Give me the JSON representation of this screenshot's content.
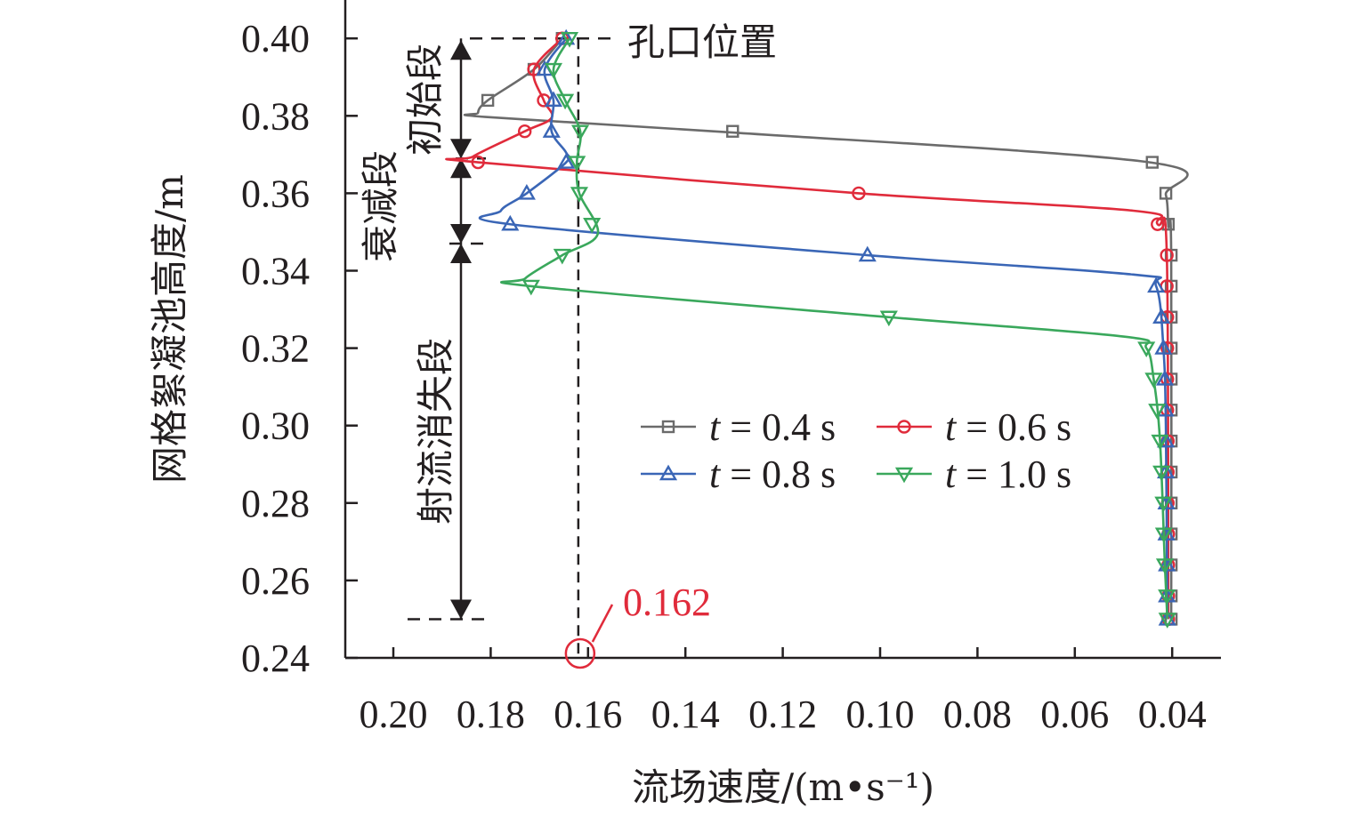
{
  "chart_data": {
    "type": "line",
    "title": "",
    "xlabel": "流场速度/(m•s⁻¹)",
    "ylabel": "网格絮凝池高度/m",
    "xlim": [
      0.21,
      0.03
    ],
    "x_reversed": true,
    "ylim": [
      0.24,
      0.41
    ],
    "x_ticks": [
      "0.20",
      "0.18",
      "0.16",
      "0.14",
      "0.12",
      "0.10",
      "0.08",
      "0.06",
      "0.04"
    ],
    "y_ticks": [
      "0.40",
      "0.38",
      "0.36",
      "0.34",
      "0.32",
      "0.30",
      "0.28",
      "0.26",
      "0.24"
    ],
    "grid": false,
    "legend_placement": "center-right",
    "series": [
      {
        "name": "t = 0.4 s",
        "t_label": "t",
        "rest_label": " = 0.4 s",
        "color": "#6b6b6b",
        "marker": "square",
        "line": [
          [
            0.1653,
            0.4
          ],
          [
            0.1711,
            0.392
          ],
          [
            0.1806,
            0.384
          ],
          [
            0.1826,
            0.3808
          ],
          [
            0.181,
            0.3797
          ],
          [
            0.1303,
            0.3757
          ],
          [
            0.0441,
            0.3679
          ],
          [
            0.0413,
            0.3596
          ],
          [
            0.0408,
            0.3516
          ],
          [
            0.0402,
            0.344
          ],
          [
            0.0402,
            0.25
          ]
        ],
        "markers": [
          [
            0.1653,
            0.4
          ],
          [
            0.1711,
            0.392
          ],
          [
            0.1806,
            0.384
          ],
          [
            0.1303,
            0.376
          ],
          [
            0.0441,
            0.368
          ],
          [
            0.0413,
            0.36
          ],
          [
            0.0408,
            0.352
          ],
          [
            0.0402,
            0.344
          ],
          [
            0.0402,
            0.336
          ],
          [
            0.0402,
            0.328
          ],
          [
            0.0402,
            0.32
          ],
          [
            0.0402,
            0.312
          ],
          [
            0.0402,
            0.304
          ],
          [
            0.0402,
            0.296
          ],
          [
            0.0402,
            0.288
          ],
          [
            0.0402,
            0.28
          ],
          [
            0.0402,
            0.272
          ],
          [
            0.0402,
            0.264
          ],
          [
            0.0402,
            0.256
          ],
          [
            0.0402,
            0.25
          ]
        ]
      },
      {
        "name": "t = 0.6 s",
        "t_label": "t",
        "rest_label": " = 0.6 s",
        "color": "#e02b3b",
        "marker": "circle",
        "line": [
          [
            0.1653,
            0.4
          ],
          [
            0.1711,
            0.392
          ],
          [
            0.1691,
            0.384
          ],
          [
            0.1675,
            0.3795
          ],
          [
            0.173,
            0.376
          ],
          [
            0.1836,
            0.3695
          ],
          [
            0.1826,
            0.368
          ],
          [
            0.1044,
            0.36
          ],
          [
            0.048,
            0.3555
          ],
          [
            0.043,
            0.352
          ],
          [
            0.0411,
            0.344
          ],
          [
            0.0408,
            0.25
          ]
        ],
        "markers": [
          [
            0.1653,
            0.4
          ],
          [
            0.1711,
            0.392
          ],
          [
            0.1691,
            0.384
          ],
          [
            0.173,
            0.376
          ],
          [
            0.1826,
            0.368
          ],
          [
            0.1044,
            0.36
          ],
          [
            0.043,
            0.352
          ],
          [
            0.0411,
            0.344
          ],
          [
            0.0411,
            0.336
          ],
          [
            0.041,
            0.328
          ],
          [
            0.041,
            0.32
          ],
          [
            0.041,
            0.312
          ],
          [
            0.041,
            0.304
          ],
          [
            0.0409,
            0.296
          ],
          [
            0.0409,
            0.288
          ],
          [
            0.0409,
            0.28
          ],
          [
            0.0408,
            0.272
          ],
          [
            0.0408,
            0.264
          ],
          [
            0.0408,
            0.256
          ],
          [
            0.0408,
            0.25
          ]
        ]
      },
      {
        "name": "t = 0.8 s",
        "t_label": "t",
        "rest_label": " = 0.8 s",
        "color": "#3a66b6",
        "marker": "triangle-up",
        "line": [
          [
            0.1645,
            0.4
          ],
          [
            0.1689,
            0.392
          ],
          [
            0.1671,
            0.384
          ],
          [
            0.1675,
            0.376
          ],
          [
            0.1645,
            0.3705
          ],
          [
            0.1645,
            0.368
          ],
          [
            0.1726,
            0.36
          ],
          [
            0.1779,
            0.3555
          ],
          [
            0.176,
            0.352
          ],
          [
            0.1026,
            0.344
          ],
          [
            0.048,
            0.339
          ],
          [
            0.0433,
            0.336
          ],
          [
            0.0418,
            0.32
          ],
          [
            0.0413,
            0.3
          ],
          [
            0.041,
            0.25
          ]
        ],
        "markers": [
          [
            0.1645,
            0.4
          ],
          [
            0.1689,
            0.392
          ],
          [
            0.1671,
            0.384
          ],
          [
            0.1675,
            0.376
          ],
          [
            0.1645,
            0.368
          ],
          [
            0.1726,
            0.36
          ],
          [
            0.176,
            0.352
          ],
          [
            0.1026,
            0.344
          ],
          [
            0.0433,
            0.336
          ],
          [
            0.0422,
            0.328
          ],
          [
            0.0418,
            0.32
          ],
          [
            0.0415,
            0.312
          ],
          [
            0.0414,
            0.304
          ],
          [
            0.0413,
            0.296
          ],
          [
            0.0413,
            0.288
          ],
          [
            0.0412,
            0.28
          ],
          [
            0.0412,
            0.272
          ],
          [
            0.0411,
            0.264
          ],
          [
            0.0411,
            0.256
          ],
          [
            0.041,
            0.25
          ]
        ]
      },
      {
        "name": "t = 1.0 s",
        "t_label": "t",
        "rest_label": " = 1.0 s",
        "color": "#3aa85c",
        "marker": "triangle-down",
        "line": [
          [
            0.1638,
            0.4
          ],
          [
            0.1671,
            0.392
          ],
          [
            0.1647,
            0.384
          ],
          [
            0.1616,
            0.376
          ],
          [
            0.1623,
            0.368
          ],
          [
            0.1618,
            0.36
          ],
          [
            0.158,
            0.3495
          ],
          [
            0.1653,
            0.344
          ],
          [
            0.1729,
            0.338
          ],
          [
            0.1717,
            0.336
          ],
          [
            0.0982,
            0.328
          ],
          [
            0.05,
            0.323
          ],
          [
            0.0453,
            0.32
          ],
          [
            0.0438,
            0.312
          ],
          [
            0.0425,
            0.296
          ],
          [
            0.0415,
            0.264
          ],
          [
            0.041,
            0.25
          ]
        ],
        "markers": [
          [
            0.1638,
            0.4
          ],
          [
            0.1671,
            0.392
          ],
          [
            0.1647,
            0.384
          ],
          [
            0.1616,
            0.376
          ],
          [
            0.1623,
            0.368
          ],
          [
            0.1618,
            0.36
          ],
          [
            0.1592,
            0.352
          ],
          [
            0.1653,
            0.344
          ],
          [
            0.1717,
            0.336
          ],
          [
            0.0982,
            0.328
          ],
          [
            0.0453,
            0.32
          ],
          [
            0.0438,
            0.312
          ],
          [
            0.0431,
            0.304
          ],
          [
            0.0425,
            0.296
          ],
          [
            0.0422,
            0.288
          ],
          [
            0.0418,
            0.28
          ],
          [
            0.0417,
            0.272
          ],
          [
            0.0415,
            0.264
          ],
          [
            0.0411,
            0.256
          ],
          [
            0.041,
            0.25
          ]
        ]
      }
    ],
    "annotations": {
      "orifice_label": "孔口位置",
      "orifice_height": 0.4,
      "reference_velocity": 0.162,
      "reference_label": "0.162",
      "reference_color": "#e02b3b",
      "zones": [
        {
          "label": "初始段",
          "from": 0.4,
          "to": 0.369
        },
        {
          "label": "衰减段",
          "from": 0.369,
          "to": 0.347
        },
        {
          "label": "射流消失段",
          "from": 0.347,
          "to": 0.25
        }
      ]
    }
  }
}
